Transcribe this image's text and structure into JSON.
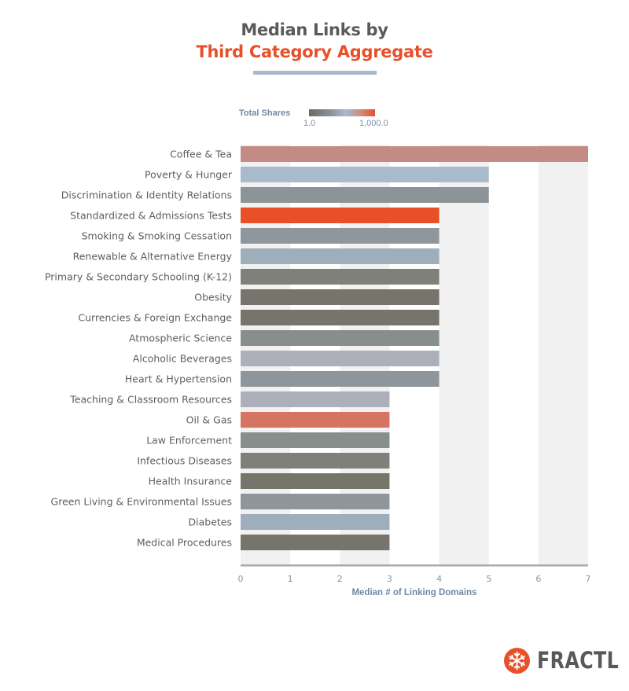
{
  "header": {
    "title_line1": "Median Links by",
    "title_line2": "Third Category Aggregate",
    "title_line2_color": "#e8502a",
    "rule_color": "#a8b9c9"
  },
  "legend": {
    "label": "Total Shares",
    "min_label": "1.0",
    "max_label": "1,000.0",
    "scale_colors": [
      "#6e6a60",
      "#8d959c",
      "#a7bbcd",
      "#cf8c7f",
      "#e8502a"
    ]
  },
  "brand": {
    "name": "FRACTL",
    "mark_color": "#e8502a"
  },
  "chart_data": {
    "type": "bar",
    "orientation": "horizontal",
    "title": "Median Links by Third Category Aggregate",
    "xlabel": "Median # of Linking Domains",
    "ylabel": "",
    "xlim": [
      0,
      7
    ],
    "xticks": [
      "0",
      "1",
      "2",
      "3",
      "4",
      "5",
      "6",
      "7"
    ],
    "grid": "alternating vertical bands",
    "legend_placement": "top",
    "color_encoding": "Total Shares (1.0 to 1,000.0)",
    "categories": [
      "Coffee & Tea",
      "Poverty & Hunger",
      "Discrimination & Identity Relations",
      "Standardized & Admissions Tests",
      "Smoking & Smoking Cessation",
      "Renewable & Alternative Energy",
      "Primary & Secondary Schooling (K-12)",
      "Obesity",
      "Currencies & Foreign Exchange",
      "Atmospheric Science",
      "Alcoholic Beverages",
      "Heart & Hypertension",
      "Teaching & Classroom Resources",
      "Oil & Gas",
      "Law Enforcement",
      "Infectious Diseases",
      "Health Insurance",
      "Green Living & Environmental Issues",
      "Diabetes",
      "Medical Procedures"
    ],
    "values": [
      7,
      5,
      5,
      4,
      4,
      4,
      4,
      4,
      4,
      4,
      4,
      4,
      3,
      3,
      3,
      3,
      3,
      3,
      3,
      3
    ],
    "colors": [
      "#c48a84",
      "#a7bbcc",
      "#8d9498",
      "#e8502a",
      "#8f979c",
      "#9eaebb",
      "#7f807a",
      "#77746b",
      "#77746b",
      "#888e8c",
      "#adb0ba",
      "#8e969c",
      "#adb0ba",
      "#d57463",
      "#888e8c",
      "#7f807a",
      "#77746b",
      "#8e969c",
      "#9eaebb",
      "#77746b"
    ]
  }
}
